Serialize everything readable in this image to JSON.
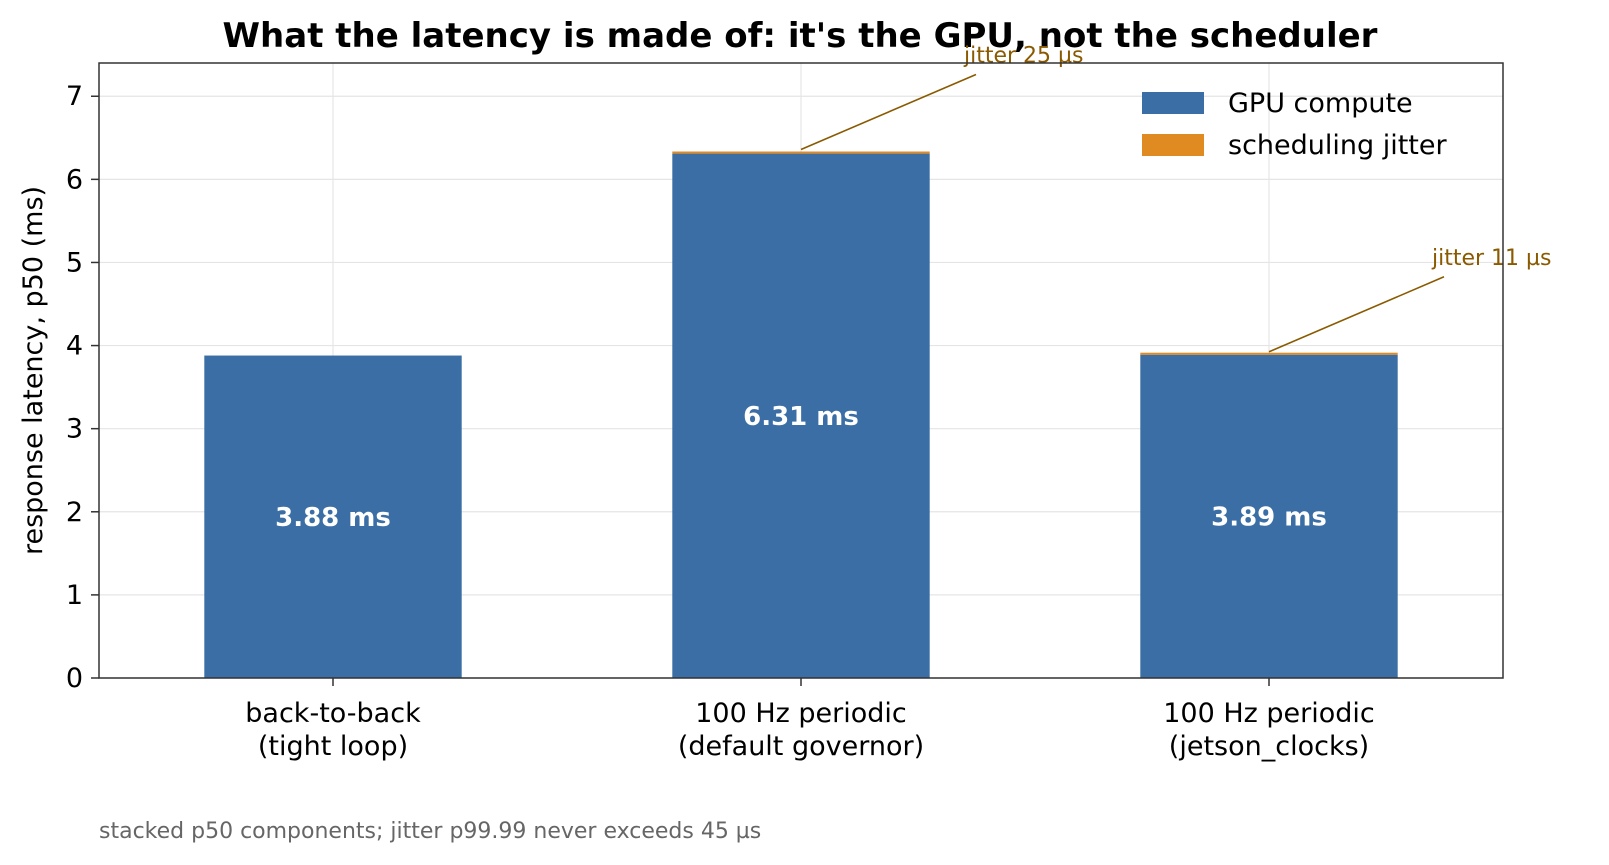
{
  "chart_data": {
    "type": "bar",
    "stacked": true,
    "title": "What the latency is made of: it's the GPU, not the scheduler",
    "xlabel": "",
    "ylabel": "response latency, p50 (ms)",
    "ylim": [
      0,
      7.4
    ],
    "yticks": [
      "0",
      "1",
      "2",
      "3",
      "4",
      "5",
      "6",
      "7"
    ],
    "grid": true,
    "legend_position": "top-right",
    "categories": [
      [
        "back-to-back",
        "(tight loop)"
      ],
      [
        "100 Hz periodic",
        "(default governor)"
      ],
      [
        "100 Hz periodic",
        "(jetson_clocks)"
      ]
    ],
    "series": [
      {
        "name": "GPU compute",
        "color": "#3b6ea5",
        "values": [
          3.88,
          6.31,
          3.89
        ]
      },
      {
        "name": "scheduling jitter",
        "color": "#e08a22",
        "values": [
          0.0,
          0.025,
          0.011
        ]
      }
    ],
    "bar_labels": [
      "3.88 ms",
      "6.31 ms",
      "3.89 ms"
    ],
    "annotations": [
      {
        "category_index": 1,
        "text": "jitter 25 µs"
      },
      {
        "category_index": 2,
        "text": "jitter 11 µs"
      }
    ],
    "annotation_color": "#8a5a00",
    "caption": "stacked p50 components; jitter p99.99 never exceeds 45 µs"
  }
}
